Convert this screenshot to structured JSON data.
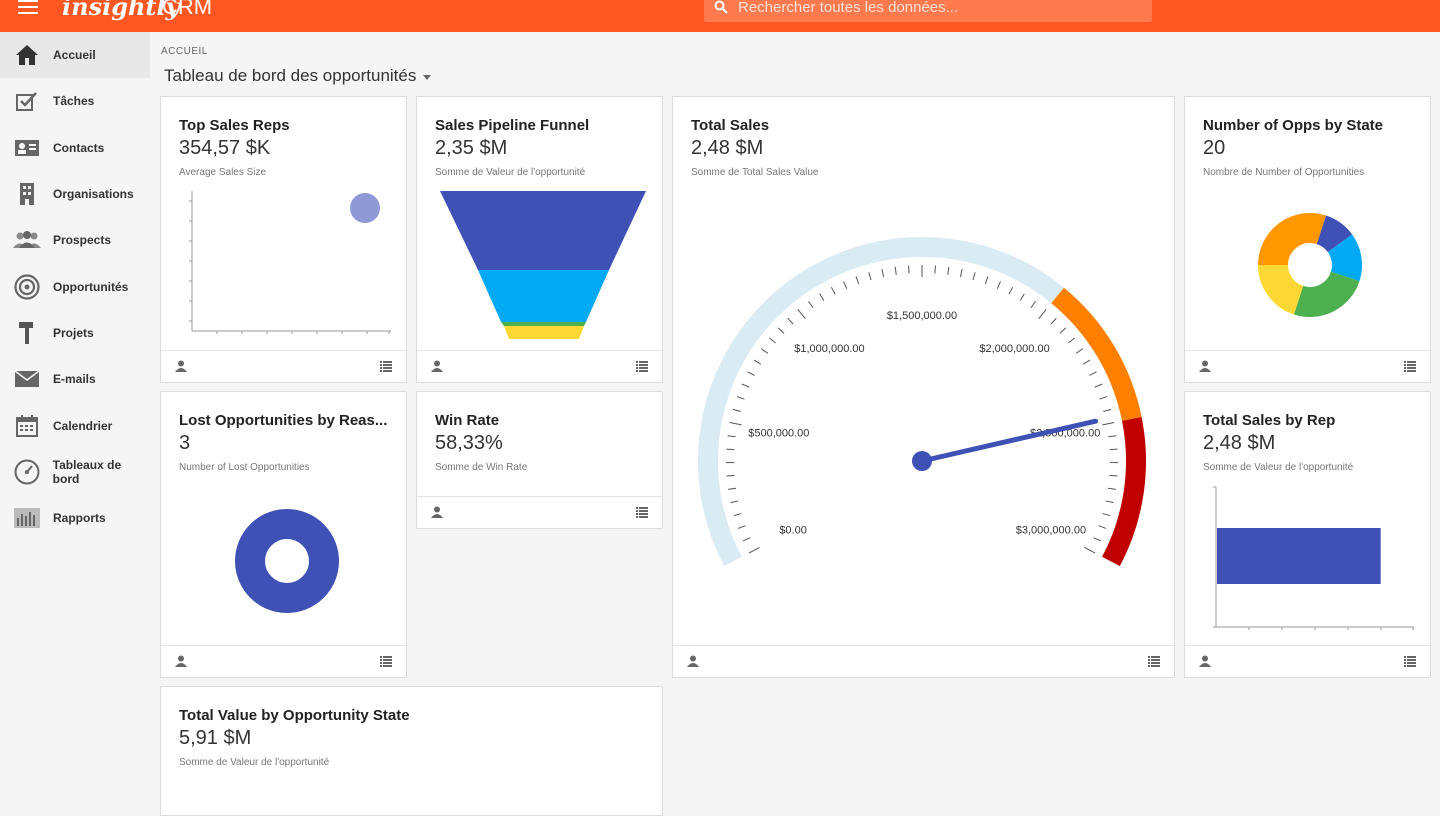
{
  "header": {
    "logo": "insightly",
    "app_name": "CRM",
    "search_placeholder": "Rechercher toutes les données..."
  },
  "sidebar": {
    "items": [
      {
        "label": "Accueil",
        "icon": "home-icon"
      },
      {
        "label": "Tâches",
        "icon": "tasks-icon"
      },
      {
        "label": "Contacts",
        "icon": "contacts-icon"
      },
      {
        "label": "Organisations",
        "icon": "building-icon"
      },
      {
        "label": "Prospects",
        "icon": "prospects-icon"
      },
      {
        "label": "Opportunités",
        "icon": "target-icon"
      },
      {
        "label": "Projets",
        "icon": "hammer-icon"
      },
      {
        "label": "E-mails",
        "icon": "mail-icon"
      },
      {
        "label": "Calendrier",
        "icon": "calendar-icon"
      },
      {
        "label": "Tableaux de bord",
        "icon": "dashboard-icon"
      },
      {
        "label": "Rapports",
        "icon": "reports-icon"
      }
    ]
  },
  "breadcrumb": "ACCUEIL",
  "page_title": "Tableau de bord des opportunités",
  "cards": {
    "top_sales_reps": {
      "title": "Top Sales Reps",
      "value": "354,57 $K",
      "subtitle": "Average Sales Size"
    },
    "pipeline_funnel": {
      "title": "Sales Pipeline Funnel",
      "value": "2,35 $M",
      "subtitle": "Somme de Valeur de l'opportunité"
    },
    "total_sales": {
      "title": "Total Sales",
      "value": "2,48 $M",
      "subtitle": "Somme de Total Sales Value"
    },
    "opps_by_state": {
      "title": "Number of Opps by State",
      "value": "20",
      "subtitle": "Nombre de Number of Opportunities"
    },
    "lost_opps": {
      "title": "Lost Opportunities by Reas...",
      "value": "3",
      "subtitle": "Number of Lost Opportunities"
    },
    "win_rate": {
      "title": "Win Rate",
      "value": "58,33%",
      "subtitle": "Somme de Win Rate"
    },
    "sales_by_rep": {
      "title": "Total Sales by Rep",
      "value": "2,48 $M",
      "subtitle": "Somme de Valeur de l'opportunité"
    },
    "value_by_state": {
      "title": "Total Value by Opportunity State",
      "value": "5,91 $M",
      "subtitle": "Somme de Valeur de l'opportunité"
    }
  },
  "colors": {
    "brand": "#ff5722",
    "indigo": "#3f51b5",
    "blue": "#03a9f4",
    "green": "#4caf50",
    "yellow": "#fdd835",
    "orange": "#ff9800",
    "red": "#c00000"
  },
  "chart_data": [
    {
      "type": "gauge",
      "min": 0,
      "max": 3000000,
      "value": 2480000,
      "tick_labels": [
        "$0.00",
        "$500,000.00",
        "$1,000,000.00",
        "$1,500,000.00",
        "$2,000,000.00",
        "$2,500,000.00",
        "$3,000,000.00"
      ],
      "bands": [
        {
          "from": 0,
          "to": 2000000,
          "color": "#d9ebf3"
        },
        {
          "from": 2000000,
          "to": 2500000,
          "color": "#ff8000"
        },
        {
          "from": 2500000,
          "to": 3000000,
          "color": "#c00000"
        }
      ]
    },
    {
      "type": "pie",
      "slices": [
        {
          "value": 30,
          "color": "#ff9800"
        },
        {
          "value": 10,
          "color": "#3f51b5"
        },
        {
          "value": 15,
          "color": "#03a9f4"
        },
        {
          "value": 25,
          "color": "#4caf50"
        },
        {
          "value": 20,
          "color": "#fdd835"
        }
      ]
    },
    {
      "type": "pie",
      "slices": [
        {
          "value": 3,
          "color": "#3f51b5"
        }
      ]
    },
    {
      "type": "bar",
      "orientation": "horizontal",
      "values": [
        2480000
      ],
      "xlim": [
        0,
        3000000
      ]
    }
  ]
}
